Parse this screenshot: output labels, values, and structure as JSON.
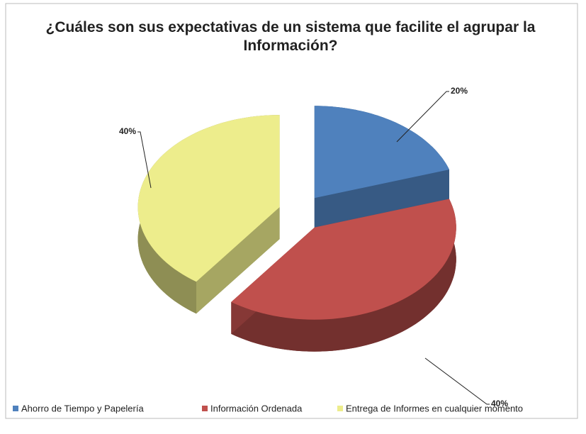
{
  "chart_data": {
    "type": "pie",
    "title": "¿Cuáles son sus expectativas de un sistema que facilite el agrupar la Información?",
    "categories": [
      "Ahorro de Tiempo y Papelería",
      "Información Ordenada",
      "Entrega de Informes en cualquier momento"
    ],
    "values": [
      20,
      40,
      40
    ],
    "value_labels": [
      "20%",
      "40%",
      "40%"
    ],
    "colors": [
      "#4f81bd",
      "#c0504d",
      "#eded8c"
    ],
    "legend": "bottom"
  }
}
